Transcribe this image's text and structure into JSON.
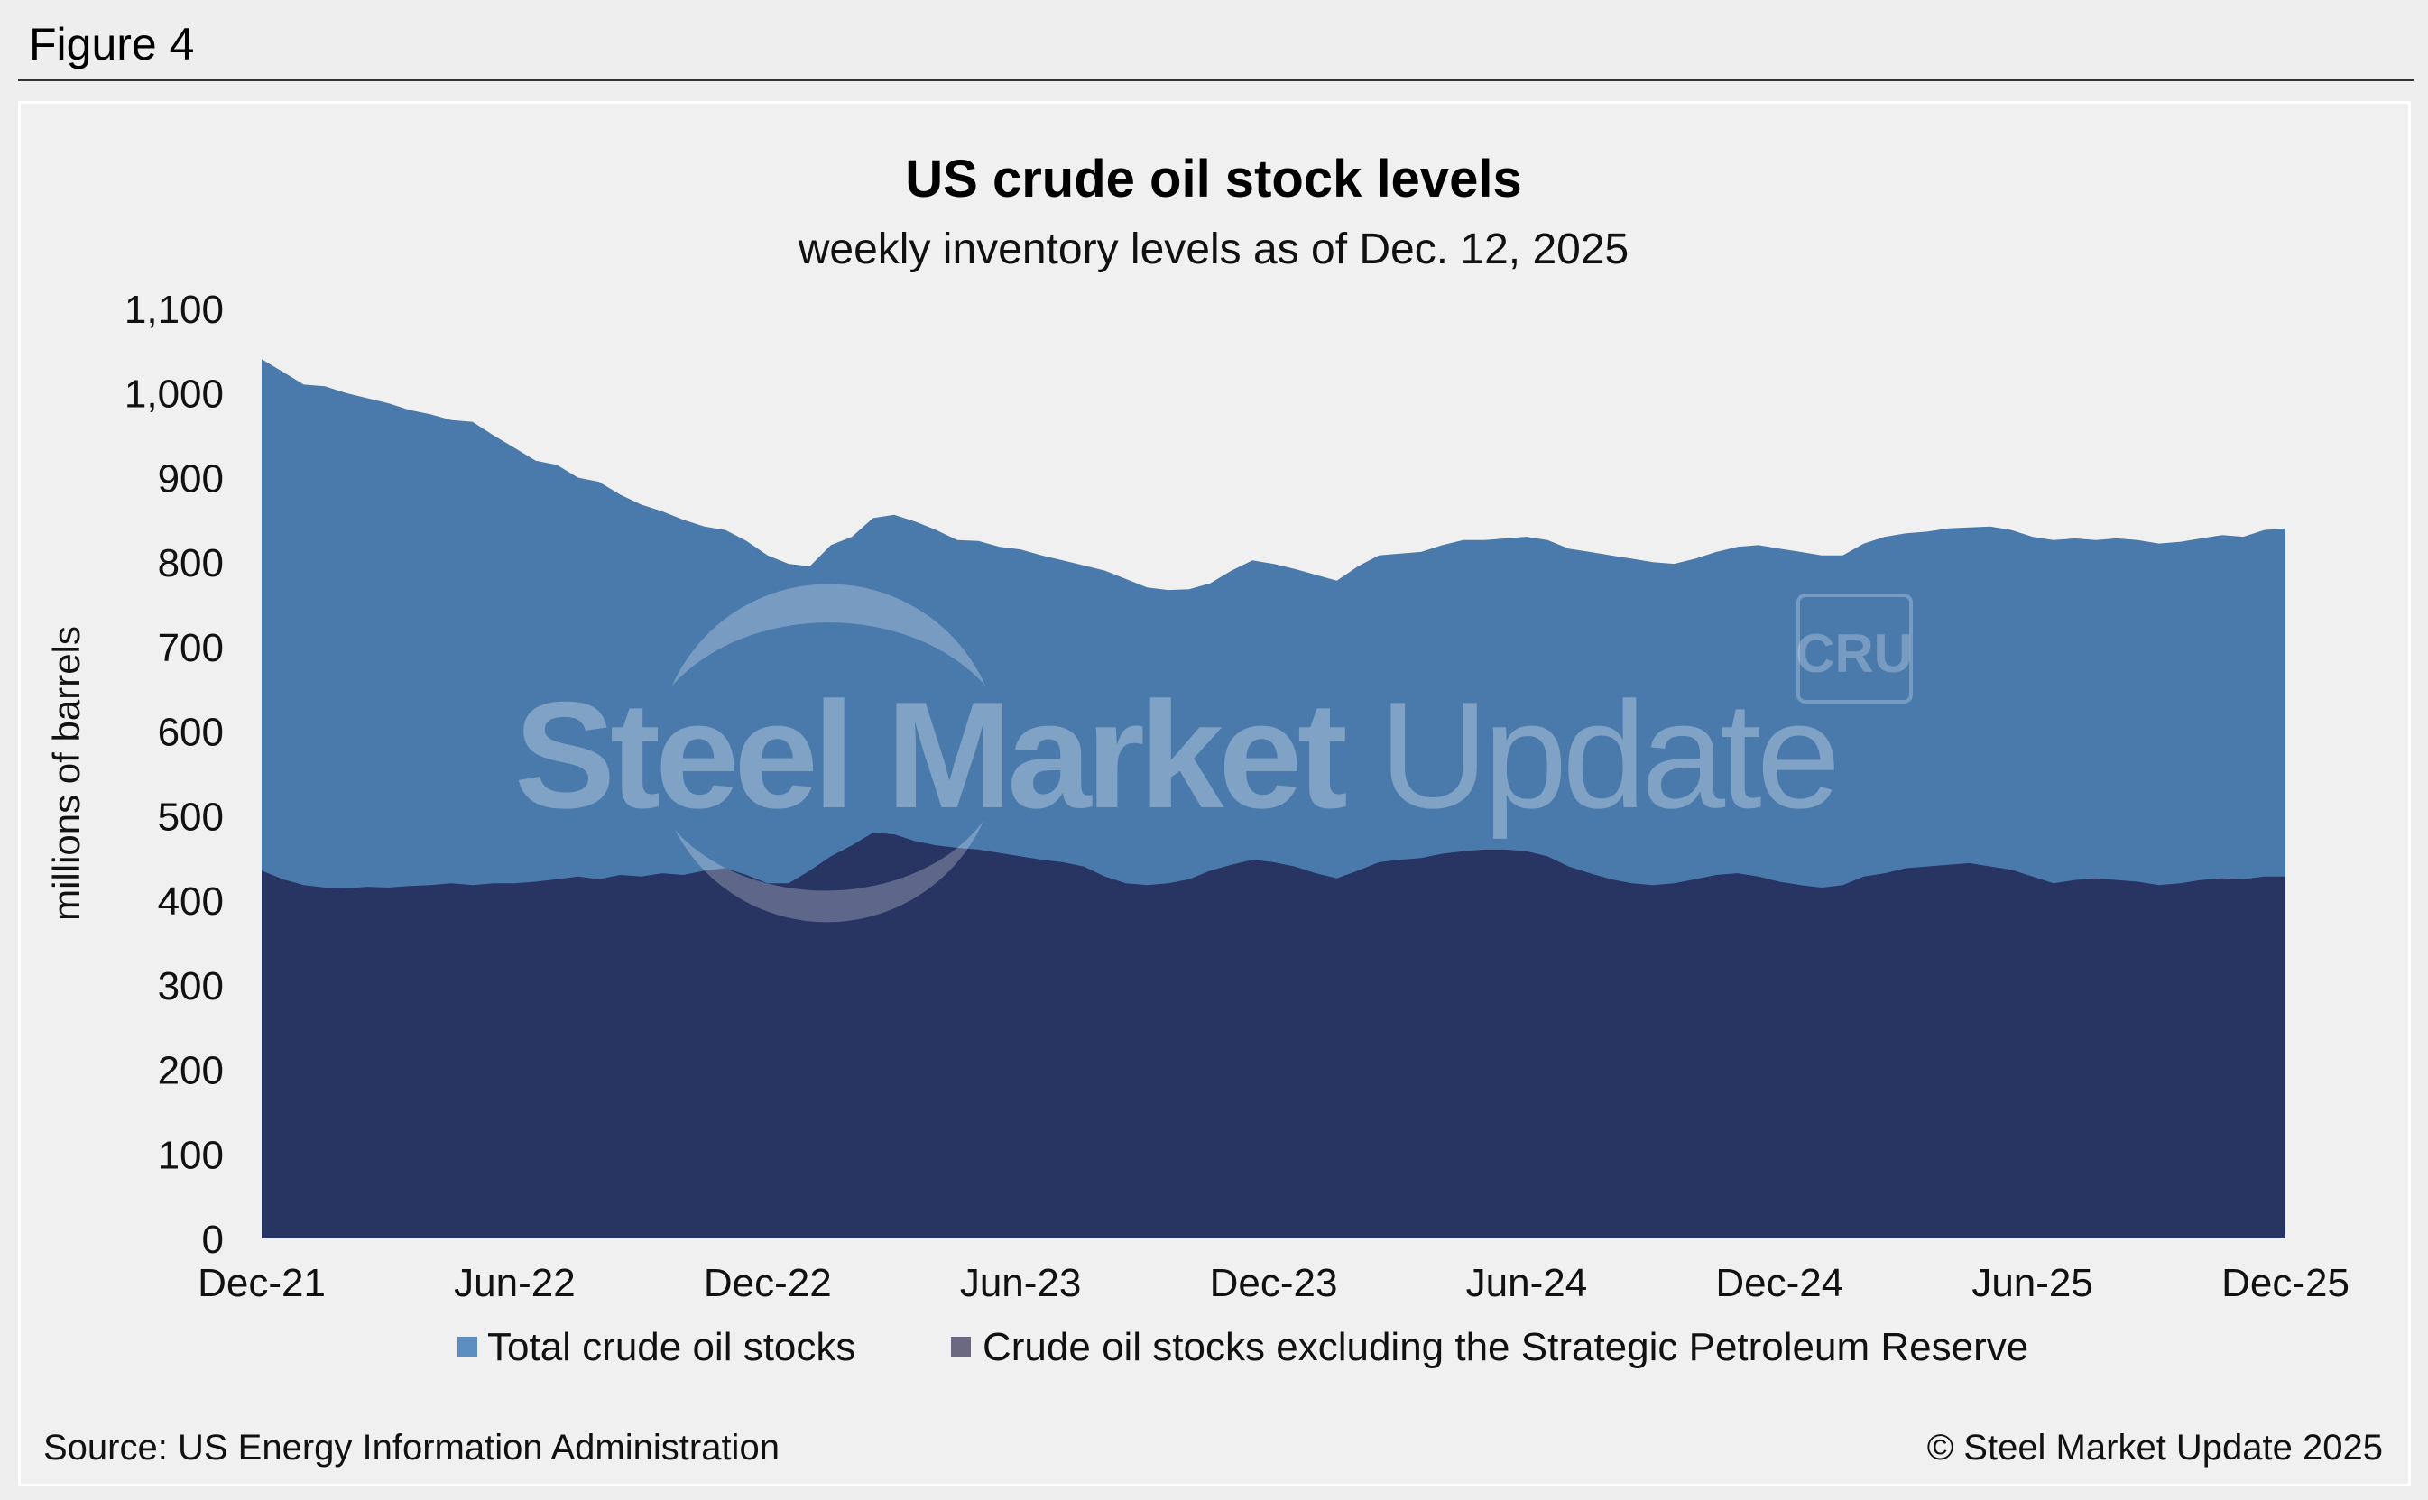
{
  "figure_label": "Figure 4",
  "footer": {
    "source": "Source: US Energy Information Administration",
    "copyright": "© Steel Market Update 2025"
  },
  "watermark": {
    "text_bold": "Steel Market",
    "text_light": "Update",
    "badge": "CRU"
  },
  "colors": {
    "total": "#4a7aac",
    "total_legend": "#5b8dc0",
    "excl_spr": "#283462",
    "excl_spr_legend": "#6b6882",
    "background": "#f0f0f0"
  },
  "chart_data": {
    "type": "area",
    "title": "US crude oil stock levels",
    "subtitle": "weekly inventory levels as of Dec. 12, 2025",
    "ylabel": "millions of barrels",
    "xlabel": "",
    "ylim": [
      0,
      1100
    ],
    "yticks": [
      0,
      100,
      200,
      300,
      400,
      500,
      600,
      700,
      800,
      900,
      1000,
      1100
    ],
    "ytick_labels": [
      "0",
      "100",
      "200",
      "300",
      "400",
      "500",
      "600",
      "700",
      "800",
      "900",
      "1,000",
      "1,100"
    ],
    "xlim": [
      0,
      48
    ],
    "x_unit": "months since Dec-21",
    "xticks": [
      0,
      6,
      12,
      18,
      24,
      30,
      36,
      42,
      48
    ],
    "xtick_labels": [
      "Dec-21",
      "Jun-22",
      "Dec-22",
      "Jun-23",
      "Dec-23",
      "Jun-24",
      "Dec-24",
      "Jun-25",
      "Dec-25"
    ],
    "grid": false,
    "legend_position": "bottom",
    "series": [
      {
        "name": "Total crude oil stocks",
        "color_key": "total",
        "x": [
          0,
          0.5,
          1,
          1.5,
          2,
          2.5,
          3,
          3.5,
          4,
          4.5,
          5,
          5.5,
          6,
          6.5,
          7,
          7.5,
          8,
          8.5,
          9,
          9.5,
          10,
          10.5,
          11,
          11.5,
          12,
          12.5,
          13,
          13.5,
          14,
          14.5,
          15,
          15.5,
          16,
          16.5,
          17,
          17.5,
          18,
          18.5,
          19,
          19.5,
          20,
          20.5,
          21,
          21.5,
          22,
          22.5,
          23,
          23.5,
          24,
          24.5,
          25,
          25.5,
          26,
          26.5,
          27,
          27.5,
          28,
          28.5,
          29,
          29.5,
          30,
          30.5,
          31,
          31.5,
          32,
          32.5,
          33,
          33.5,
          34,
          34.5,
          35,
          35.5,
          36,
          36.5,
          37,
          37.5,
          38,
          38.5,
          39,
          39.5,
          40,
          40.5,
          41,
          41.5,
          42,
          42.5,
          43,
          43.5,
          44,
          44.5,
          45,
          45.5,
          46,
          46.5,
          47,
          47.5,
          48
        ],
        "values": [
          1040,
          1025,
          1010,
          1008,
          1000,
          994,
          988,
          980,
          975,
          968,
          966,
          950,
          935,
          920,
          915,
          900,
          895,
          880,
          868,
          860,
          850,
          842,
          838,
          825,
          808,
          798,
          795,
          820,
          830,
          852,
          856,
          848,
          838,
          826,
          825,
          818,
          815,
          808,
          802,
          796,
          790,
          780,
          770,
          767,
          768,
          775,
          790,
          802,
          798,
          792,
          785,
          778,
          795,
          808,
          810,
          812,
          820,
          826,
          826,
          828,
          830,
          826,
          816,
          812,
          808,
          804,
          800,
          798,
          804,
          812,
          818,
          820,
          816,
          812,
          808,
          808,
          822,
          830,
          834,
          836,
          840,
          841,
          842,
          838,
          830,
          826,
          828,
          826,
          828,
          826,
          822,
          824,
          828,
          832,
          830,
          838,
          840
        ]
      },
      {
        "name": "Crude oil stocks excluding the Strategic Petroleum Reserve",
        "color_key": "excl_spr",
        "x": [
          0,
          0.5,
          1,
          1.5,
          2,
          2.5,
          3,
          3.5,
          4,
          4.5,
          5,
          5.5,
          6,
          6.5,
          7,
          7.5,
          8,
          8.5,
          9,
          9.5,
          10,
          10.5,
          11,
          11.5,
          12,
          12.5,
          13,
          13.5,
          14,
          14.5,
          15,
          15.5,
          16,
          16.5,
          17,
          17.5,
          18,
          18.5,
          19,
          19.5,
          20,
          20.5,
          21,
          21.5,
          22,
          22.5,
          23,
          23.5,
          24,
          24.5,
          25,
          25.5,
          26,
          26.5,
          27,
          27.5,
          28,
          28.5,
          29,
          29.5,
          30,
          30.5,
          31,
          31.5,
          32,
          32.5,
          33,
          33.5,
          34,
          34.5,
          35,
          35.5,
          36,
          36.5,
          37,
          37.5,
          38,
          38.5,
          39,
          39.5,
          40,
          40.5,
          41,
          41.5,
          42,
          42.5,
          43,
          43.5,
          44,
          44.5,
          45,
          45.5,
          46,
          46.5,
          47,
          47.5,
          48
        ],
        "values": [
          435,
          425,
          418,
          415,
          414,
          416,
          415,
          417,
          418,
          420,
          418,
          420,
          420,
          422,
          425,
          428,
          425,
          430,
          428,
          432,
          430,
          435,
          438,
          430,
          420,
          420,
          435,
          452,
          465,
          480,
          478,
          470,
          465,
          462,
          460,
          456,
          452,
          448,
          445,
          440,
          428,
          420,
          418,
          420,
          425,
          435,
          442,
          448,
          445,
          440,
          432,
          426,
          435,
          445,
          448,
          450,
          455,
          458,
          460,
          460,
          458,
          452,
          440,
          432,
          425,
          420,
          418,
          420,
          425,
          430,
          432,
          428,
          422,
          418,
          415,
          418,
          428,
          432,
          438,
          440,
          442,
          444,
          440,
          436,
          428,
          420,
          424,
          426,
          424,
          422,
          418,
          420,
          424,
          426,
          425,
          428,
          428
        ]
      }
    ]
  }
}
